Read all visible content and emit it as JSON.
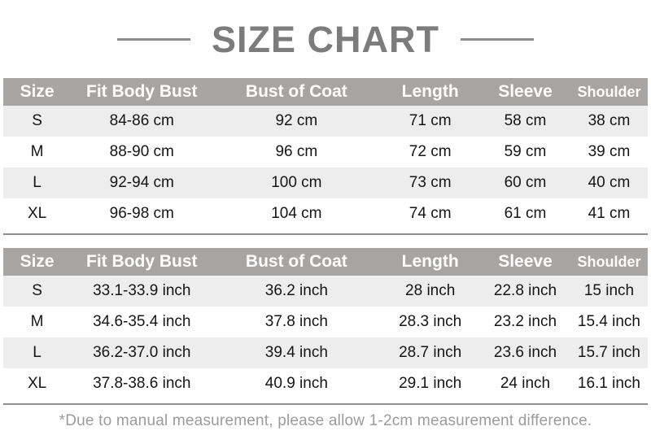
{
  "title": "SIZE CHART",
  "footnote": "*Due to manual measurement, please allow 1-2cm measurement difference.",
  "colors": {
    "header_bg": "#a8a4a1",
    "header_text": "#ffffff",
    "stripe_bg": "#ededed",
    "body_text": "#151515",
    "title_text": "#7c7c7c",
    "rule_color": "#8d8d8d",
    "divider_color": "#8f8f8f",
    "footnote_text": "#9c9c9c",
    "page_bg": "#ffffff"
  },
  "chart_data": [
    {
      "type": "table",
      "unit": "cm",
      "headers": [
        "Size",
        "Fit Body Bust",
        "Bust of Coat",
        "Length",
        "Sleeve",
        "Shoulder"
      ],
      "rows": [
        [
          "S",
          "84-86 cm",
          "92 cm",
          "71 cm",
          "58 cm",
          "38 cm"
        ],
        [
          "M",
          "88-90 cm",
          "96 cm",
          "72 cm",
          "59 cm",
          "39 cm"
        ],
        [
          "L",
          "92-94 cm",
          "100 cm",
          "73 cm",
          "60 cm",
          "40 cm"
        ],
        [
          "XL",
          "96-98 cm",
          "104 cm",
          "74 cm",
          "61 cm",
          "41 cm"
        ]
      ]
    },
    {
      "type": "table",
      "unit": "inch",
      "headers": [
        "Size",
        "Fit Body Bust",
        "Bust of Coat",
        "Length",
        "Sleeve",
        "Shoulder"
      ],
      "rows": [
        [
          "S",
          "33.1-33.9 inch",
          "36.2 inch",
          "28 inch",
          "22.8 inch",
          "15 inch"
        ],
        [
          "M",
          "34.6-35.4 inch",
          "37.8 inch",
          "28.3 inch",
          "23.2 inch",
          "15.4 inch"
        ],
        [
          "L",
          "36.2-37.0 inch",
          "39.4 inch",
          "28.7 inch",
          "23.6 inch",
          "15.7 inch"
        ],
        [
          "XL",
          "37.8-38.6 inch",
          "40.9 inch",
          "29.1 inch",
          "24 inch",
          "16.1 inch"
        ]
      ]
    }
  ]
}
